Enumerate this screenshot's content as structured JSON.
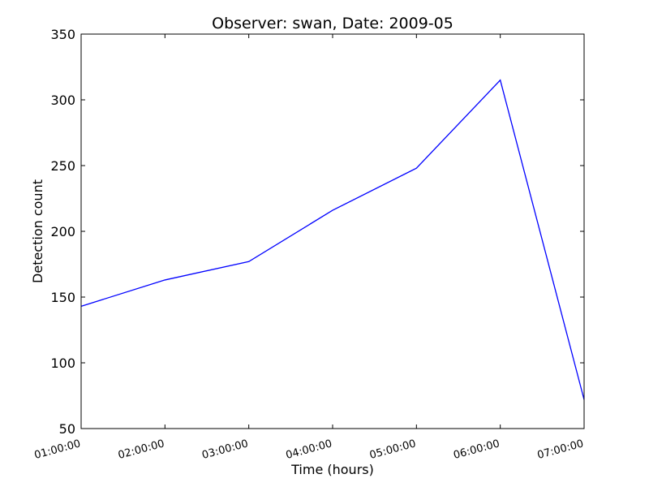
{
  "chart_data": {
    "type": "line",
    "title": "Observer: swan, Date: 2009-05",
    "xlabel": "Time (hours)",
    "ylabel": "Detection count",
    "x": [
      "01:00:00",
      "02:00:00",
      "03:00:00",
      "04:00:00",
      "05:00:00",
      "06:00:00",
      "07:00:00"
    ],
    "series": [
      {
        "values": [
          143,
          163,
          177,
          216,
          248,
          315,
          72
        ],
        "color": "#0000ff"
      }
    ],
    "ylim": [
      50,
      350
    ],
    "yticks": [
      50,
      100,
      150,
      200,
      250,
      300,
      350
    ],
    "grid": false,
    "legend": "none"
  }
}
